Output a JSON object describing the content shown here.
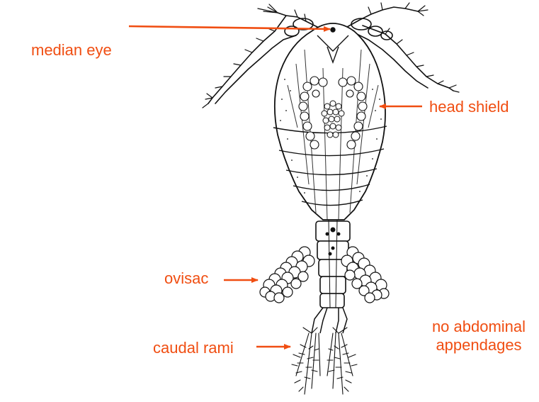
{
  "colors": {
    "label": "#f04e12",
    "ink": "#111111",
    "background": "#ffffff"
  },
  "labels": {
    "median_eye": "median eye",
    "head_shield": "head shield",
    "ovisac": "ovisac",
    "caudal_rami": "caudal rami",
    "no_abdominal_line1": "no abdominal",
    "no_abdominal_line2": "appendages"
  }
}
